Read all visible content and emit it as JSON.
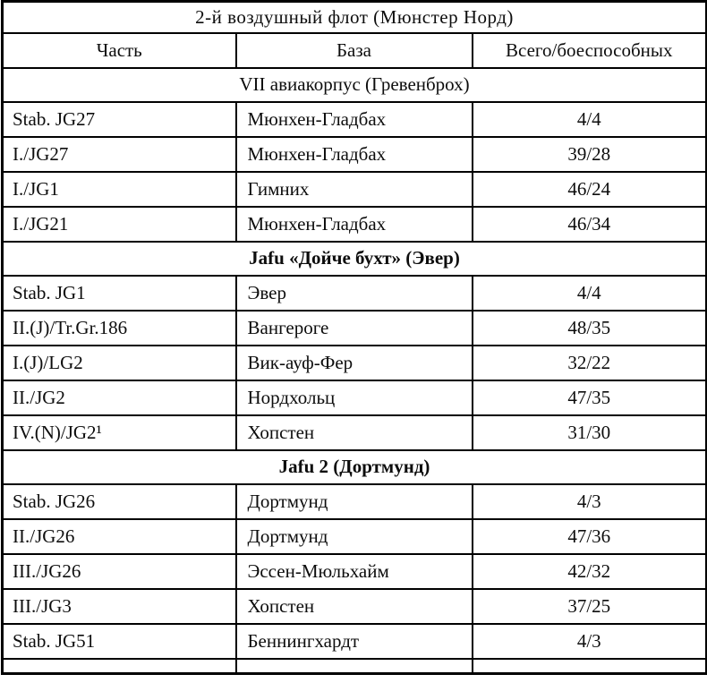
{
  "colors": {
    "border": "#000000",
    "text": "#0d0d0d",
    "background": "#ffffff"
  },
  "table": {
    "title": "2-й воздушный флот (Мюнстер Норд)",
    "columns": [
      "Часть",
      "База",
      "Всего/боеспособных"
    ],
    "sections": [
      {
        "header": "VII авиакорпус (Гревенброх)",
        "bold": false,
        "rows": [
          [
            "Stab. JG27",
            "Мюнхен-Гладбах",
            "4/4"
          ],
          [
            "I./JG27",
            "Мюнхен-Гладбах",
            "39/28"
          ],
          [
            "I./JG1",
            "Гимних",
            "46/24"
          ],
          [
            "I./JG21",
            "Мюнхен-Гладбах",
            "46/34"
          ]
        ]
      },
      {
        "header": "Jafu «Дойче бухт» (Эвер)",
        "bold": true,
        "rows": [
          [
            "Stab. JG1",
            "Эвер",
            "4/4"
          ],
          [
            "II.(J)/Tr.Gr.186",
            "Вангероге",
            "48/35"
          ],
          [
            "I.(J)/LG2",
            "Вик-ауф-Фер",
            "32/22"
          ],
          [
            "II./JG2",
            "Нордхольц",
            "47/35"
          ],
          [
            "IV.(N)/JG2¹",
            "Хопстен",
            "31/30"
          ]
        ]
      },
      {
        "header": "Jafu 2 (Дортмунд)",
        "bold": true,
        "rows": [
          [
            "Stab. JG26",
            "Дортмунд",
            "4/3"
          ],
          [
            "II./JG26",
            "Дортмунд",
            "47/36"
          ],
          [
            "III./JG26",
            "Эссен-Мюльхайм",
            "42/32"
          ],
          [
            "III./JG3",
            "Хопстен",
            "37/25"
          ],
          [
            "Stab. JG51",
            "Беннингхардт",
            "4/3"
          ]
        ]
      }
    ]
  }
}
